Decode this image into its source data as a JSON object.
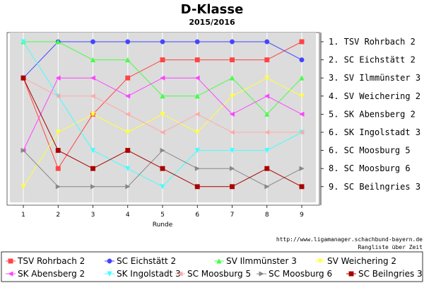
{
  "chart_data": {
    "type": "line",
    "title": "D-Klasse",
    "subtitle": "2015/2016",
    "xlabel": "Runde",
    "ylabel": "",
    "x": [
      1,
      2,
      3,
      4,
      5,
      6,
      7,
      8,
      9
    ],
    "ylim": [
      1,
      9
    ],
    "y_inverted": true,
    "grid": true,
    "legend_position": "bottom",
    "rank_labels": [
      "1. TSV Rohrbach 2",
      "2. SC Eichstätt 2",
      "3. SV Ilmmünster 3",
      "4. SV Weichering 2",
      "5. SK Abensberg 2",
      "6. SK Ingolstadt 3",
      "6. SC Moosburg 5",
      "8. SC Moosburg 6",
      "9. SC Beilngries 3"
    ],
    "source_url": "http://www.ligamanager.schachbund-bayern.de",
    "note": "Rangliste über Zeit",
    "series": [
      {
        "name": "TSV Rohrbach 2",
        "color": "#ff4444",
        "marker": "square",
        "values": [
          3,
          8,
          5,
          3,
          2,
          2,
          2,
          2,
          1
        ]
      },
      {
        "name": "SC Eichstätt 2",
        "color": "#4444ff",
        "marker": "circle",
        "values": [
          3,
          1,
          1,
          1,
          1,
          1,
          1,
          1,
          2
        ]
      },
      {
        "name": "SV Ilmmünster 3",
        "color": "#44ff44",
        "marker": "triangle-up",
        "values": [
          1,
          1,
          2,
          2,
          4,
          4,
          3,
          5,
          3
        ]
      },
      {
        "name": "SV Weichering 2",
        "color": "#ffff44",
        "marker": "triangle-down",
        "values": [
          9,
          6,
          5,
          6,
          5,
          6,
          4,
          3,
          4
        ]
      },
      {
        "name": "SK Abensberg 2",
        "color": "#ff44ff",
        "marker": "triangle-left",
        "values": [
          7,
          3,
          3,
          4,
          3,
          3,
          5,
          4,
          5
        ]
      },
      {
        "name": "SK Ingolstadt 3",
        "color": "#44ffff",
        "marker": "triangle-down",
        "values": [
          1,
          4,
          7,
          8,
          9,
          7,
          7,
          7,
          6
        ]
      },
      {
        "name": "SC Moosburg 5",
        "color": "#ffaaaa",
        "marker": "triangle-left",
        "values": [
          3,
          4,
          4,
          5,
          6,
          5,
          6,
          6,
          6
        ]
      },
      {
        "name": "SC Moosburg 6",
        "color": "#888888",
        "marker": "triangle-right",
        "values": [
          7,
          9,
          9,
          9,
          7,
          8,
          8,
          9,
          8
        ]
      },
      {
        "name": "SC Beilngries 3",
        "color": "#aa0000",
        "marker": "square",
        "values": [
          3,
          7,
          8,
          7,
          8,
          9,
          9,
          8,
          9
        ]
      }
    ]
  }
}
